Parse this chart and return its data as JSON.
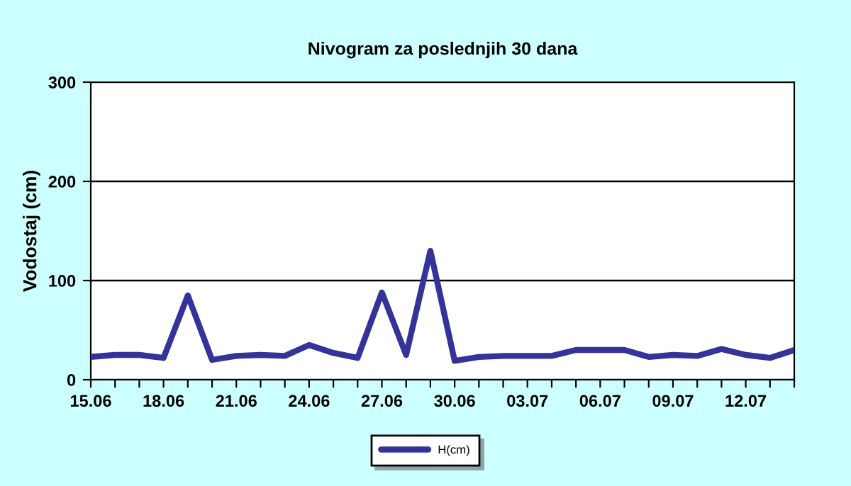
{
  "chart_data": {
    "type": "line",
    "title": "Nivogram za poslednjih 30 dana",
    "ylabel": "Vodostaj (cm)",
    "categories": [
      "15.06",
      null,
      null,
      "18.06",
      null,
      null,
      "21.06",
      null,
      null,
      "24.06",
      null,
      null,
      "27.06",
      null,
      null,
      "30.06",
      null,
      null,
      "03.07",
      null,
      null,
      "06.07",
      null,
      null,
      "09.07",
      null,
      null,
      "12.07",
      null,
      null
    ],
    "series": [
      {
        "name": "H(cm)",
        "color": "#333399",
        "values": [
          23,
          25,
          25,
          22,
          85,
          20,
          24,
          25,
          24,
          35,
          27,
          22,
          88,
          25,
          130,
          19,
          23,
          24,
          24,
          24,
          30,
          30,
          30,
          23,
          25,
          24,
          31,
          25,
          22,
          30
        ]
      }
    ],
    "ylim": [
      0,
      300
    ],
    "yticks": [
      0,
      100,
      200,
      300
    ],
    "grid": "y",
    "legend": "bottom",
    "marker": "none",
    "line_style": "solid"
  }
}
